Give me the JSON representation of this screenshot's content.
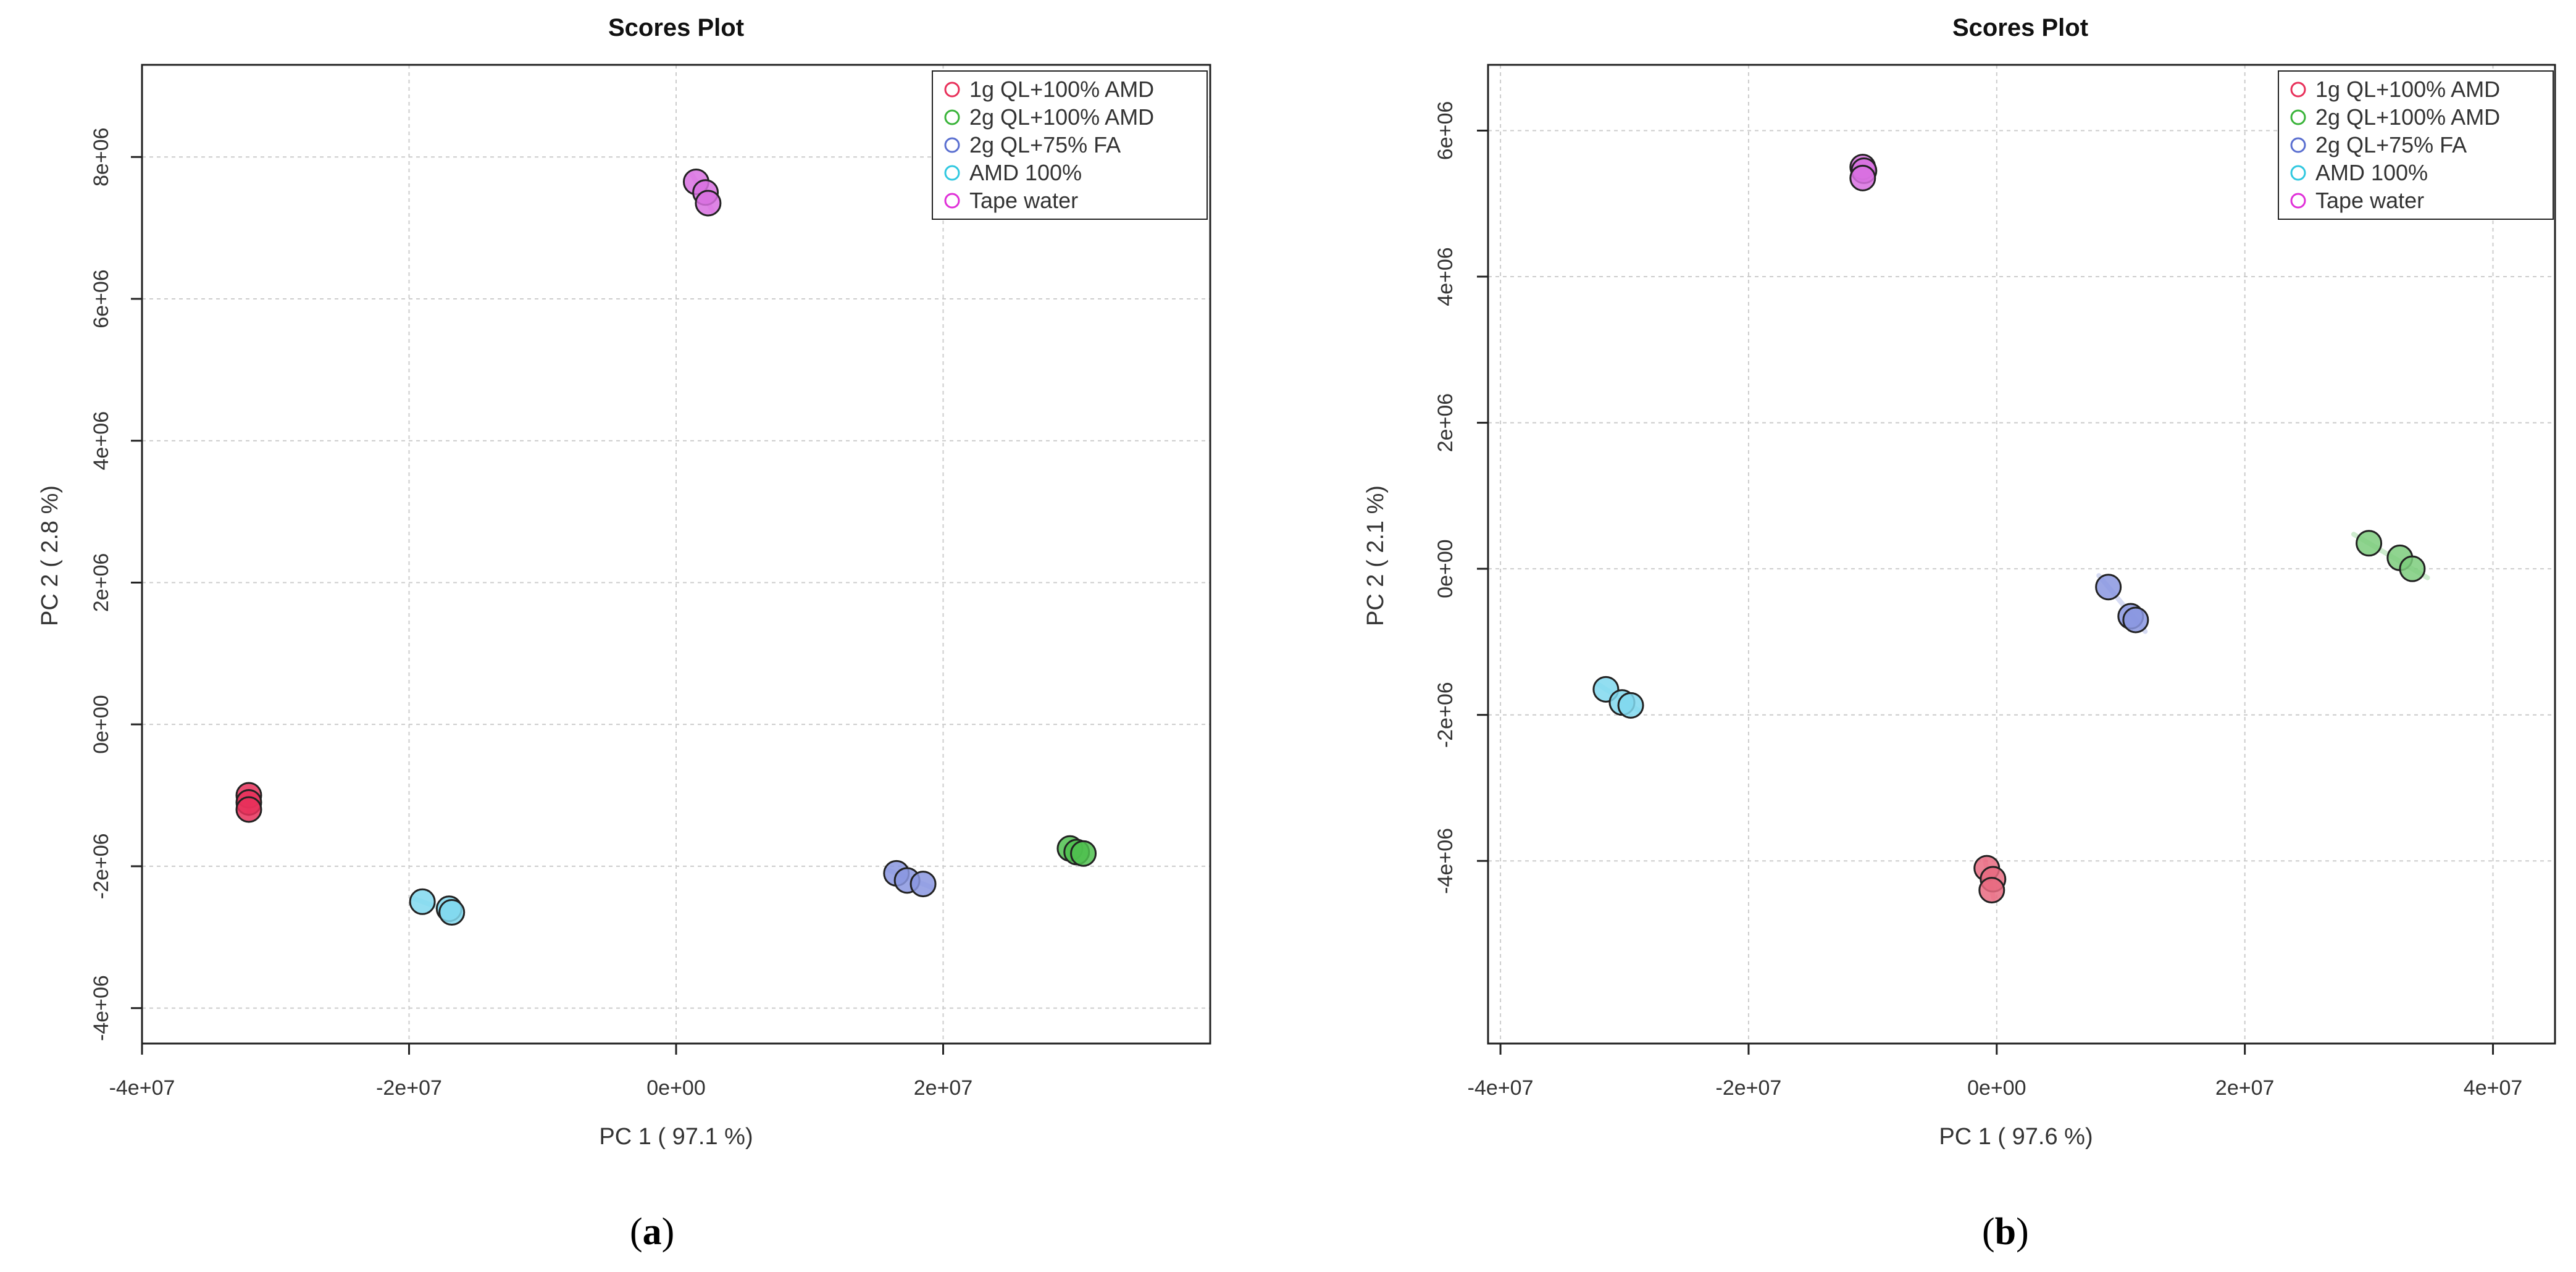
{
  "chart_data": [
    {
      "type": "scatter",
      "panel": "(a)",
      "panel_letter": "a",
      "title": "Scores Plot",
      "xlabel": "PC 1 ( 97.1 %)",
      "ylabel": "PC 2 ( 2.8 %)",
      "xlim": [
        -40000000,
        40000000
      ],
      "ylim": [
        -4500000,
        9300000
      ],
      "xticks": [
        -40000000,
        -20000000,
        0,
        20000000
      ],
      "xtick_labels": [
        "-4e+07",
        "-2e+07",
        "0e+00",
        "2e+07"
      ],
      "yticks": [
        -4000000,
        -2000000,
        0,
        2000000,
        4000000,
        6000000,
        8000000
      ],
      "ytick_labels": [
        "-4e+06",
        "-2e+06",
        "0e+00",
        "2e+06",
        "4e+06",
        "6e+06",
        "8e+06"
      ],
      "grid": true,
      "legend": "top-right",
      "series": [
        {
          "name": "1g QL+100% AMD",
          "color": "#e8305a",
          "fill": "#e8305a",
          "points": [
            [
              -32000000,
              -1000000
            ],
            [
              -32000000,
              -1100000
            ],
            [
              -32000000,
              -1200000
            ]
          ]
        },
        {
          "name": "2g QL+100% AMD",
          "color": "#3ab43a",
          "fill": "#4fc04f",
          "points": [
            [
              29500000,
              -1750000
            ],
            [
              30000000,
              -1800000
            ],
            [
              30500000,
              -1820000
            ]
          ]
        },
        {
          "name": "2g QL+75% FA",
          "color": "#5a6fd0",
          "fill": "#8a96e0",
          "points": [
            [
              16500000,
              -2100000
            ],
            [
              17300000,
              -2200000
            ],
            [
              18500000,
              -2250000
            ]
          ]
        },
        {
          "name": "AMD 100%",
          "color": "#30c8e0",
          "fill": "#80d8ee",
          "points": [
            [
              -19000000,
              -2500000
            ],
            [
              -17000000,
              -2600000
            ],
            [
              -16800000,
              -2650000
            ]
          ]
        },
        {
          "name": "Tape water",
          "color": "#e030d8",
          "fill": "#d870e0",
          "points": [
            [
              1500000,
              7650000
            ],
            [
              2200000,
              7500000
            ],
            [
              2400000,
              7350000
            ]
          ]
        }
      ]
    },
    {
      "type": "scatter",
      "panel": "(b)",
      "panel_letter": "b",
      "title": "Scores Plot",
      "xlabel": "PC 1 ( 97.6 %)",
      "ylabel": "PC 2 ( 2.1 %)",
      "xlim": [
        -41000000,
        45000000
      ],
      "ylim": [
        -6500000,
        6900000
      ],
      "xticks": [
        -40000000,
        -20000000,
        0,
        20000000,
        40000000
      ],
      "xtick_labels": [
        "-4e+07",
        "-2e+07",
        "0e+00",
        "2e+07",
        "4e+07"
      ],
      "yticks": [
        -4000000,
        -2000000,
        0,
        2000000,
        4000000,
        6000000
      ],
      "ytick_labels": [
        "-4e+06",
        "-2e+06",
        "0e+00",
        "2e+06",
        "4e+06",
        "6e+06"
      ],
      "grid": true,
      "legend": "top-right",
      "series": [
        {
          "name": "1g QL+100% AMD",
          "color": "#e8305a",
          "fill": "#e86a80",
          "points": [
            [
              -800000,
              -4100000
            ],
            [
              -300000,
              -4250000
            ],
            [
              -400000,
              -4400000
            ]
          ]
        },
        {
          "name": "2g QL+100% AMD",
          "color": "#3ab43a",
          "fill": "#7ccc7c",
          "points": [
            [
              30000000,
              350000
            ],
            [
              32500000,
              150000
            ],
            [
              33500000,
              0
            ]
          ]
        },
        {
          "name": "2g QL+75% FA",
          "color": "#5a6fd0",
          "fill": "#8a96e0",
          "points": [
            [
              9000000,
              -250000
            ],
            [
              10800000,
              -650000
            ],
            [
              11200000,
              -700000
            ]
          ]
        },
        {
          "name": "AMD 100%",
          "color": "#30c8e0",
          "fill": "#80d8ee",
          "points": [
            [
              -31500000,
              -1650000
            ],
            [
              -30200000,
              -1830000
            ],
            [
              -29500000,
              -1870000
            ]
          ]
        },
        {
          "name": "Tape water",
          "color": "#e030d8",
          "fill": "#d870e0",
          "points": [
            [
              -10800000,
              5500000
            ],
            [
              -10700000,
              5450000
            ],
            [
              -10800000,
              5350000
            ]
          ]
        }
      ]
    }
  ]
}
